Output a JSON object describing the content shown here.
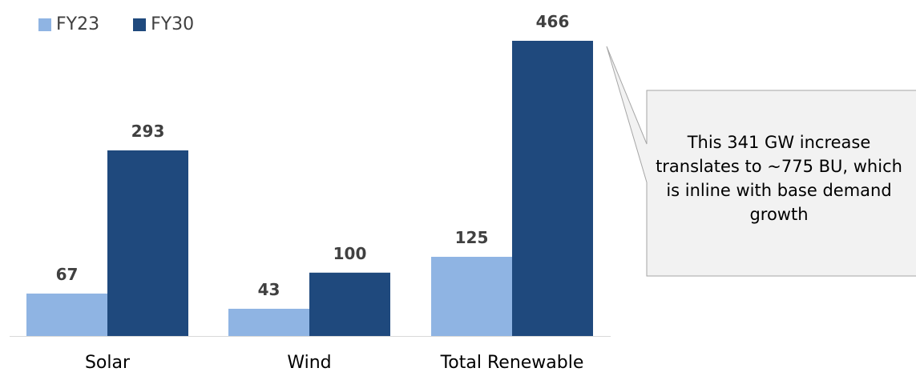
{
  "chart_data": {
    "type": "bar",
    "categories": [
      "Solar",
      "Wind",
      "Total Renewable"
    ],
    "series": [
      {
        "name": "FY23",
        "values": [
          67,
          43,
          125
        ],
        "color": "#8FB4E3"
      },
      {
        "name": "FY30",
        "values": [
          293,
          100,
          466
        ],
        "color": "#1F497D"
      }
    ],
    "ylim": [
      0,
      466
    ],
    "grid": false,
    "legend": "top-left",
    "data_labels": true
  },
  "callout": {
    "text": "This 341 GW increase translates to ~775 BU, which is inline with base demand growth"
  },
  "colors": {
    "label_text": "#404040",
    "callout_fill": "#F2F2F2",
    "callout_border": "#A6A6A6",
    "axis_line": "#D9D9D9"
  }
}
